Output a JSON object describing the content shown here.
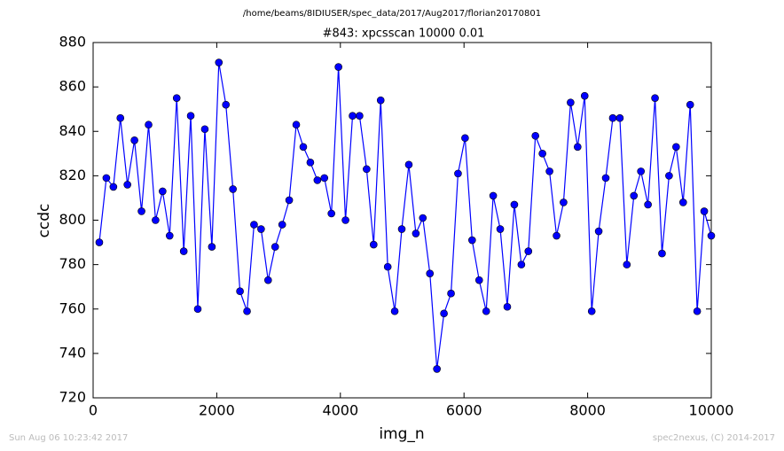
{
  "header": "/home/beams/8IDIUSER/spec_data/2017/Aug2017/florian20170801",
  "footer_left": "Sun Aug 06 10:23:42 2017",
  "footer_right": "spec2nexus, (C) 2014-2017",
  "chart_data": {
    "type": "line",
    "title": "#843: xpcsscan 10000 0.01",
    "x_label": "img_n",
    "y_label": "ccdc",
    "x": [
      100,
      214,
      328,
      441,
      555,
      669,
      783,
      897,
      1010,
      1124,
      1238,
      1352,
      1466,
      1579,
      1693,
      1807,
      1921,
      2034,
      2148,
      2262,
      2376,
      2490,
      2603,
      2717,
      2831,
      2945,
      3059,
      3172,
      3286,
      3400,
      3514,
      3628,
      3741,
      3855,
      3969,
      4083,
      4197,
      4310,
      4424,
      4538,
      4652,
      4766,
      4879,
      4993,
      5107,
      5221,
      5334,
      5448,
      5562,
      5676,
      5790,
      5903,
      6017,
      6131,
      6245,
      6359,
      6472,
      6586,
      6700,
      6814,
      6928,
      7041,
      7155,
      7269,
      7383,
      7497,
      7610,
      7724,
      7838,
      7952,
      8066,
      8179,
      8293,
      8407,
      8521,
      8634,
      8748,
      8862,
      8976,
      9090,
      9203,
      9317,
      9431,
      9545,
      9659,
      9772,
      9886,
      10000
    ],
    "series": [
      {
        "color": "#0000ff",
        "values": [
          790,
          819,
          815,
          846,
          816,
          836,
          804,
          843,
          800,
          813,
          793,
          855,
          786,
          847,
          760,
          841,
          788,
          871,
          852,
          814,
          768,
          759,
          798,
          796,
          773,
          788,
          798,
          809,
          843,
          833,
          826,
          818,
          819,
          803,
          869,
          800,
          847,
          847,
          823,
          789,
          854,
          779,
          759,
          796,
          825,
          794,
          801,
          776,
          733,
          758,
          767,
          821,
          837,
          791,
          773,
          759,
          811,
          796,
          761,
          807,
          780,
          786,
          838,
          830,
          822,
          793,
          808,
          853,
          833,
          856,
          759,
          795,
          819,
          846,
          846,
          780,
          811,
          822,
          807,
          855,
          785,
          820,
          833,
          808,
          852,
          759,
          804,
          793
        ]
      }
    ],
    "xlim": [
      0,
      10000
    ],
    "xticks": [
      0,
      2000,
      4000,
      6000,
      8000,
      10000
    ],
    "ylim": [
      720,
      880
    ],
    "yticks": [
      720,
      740,
      760,
      780,
      800,
      820,
      840,
      860,
      880
    ],
    "grid": false
  }
}
